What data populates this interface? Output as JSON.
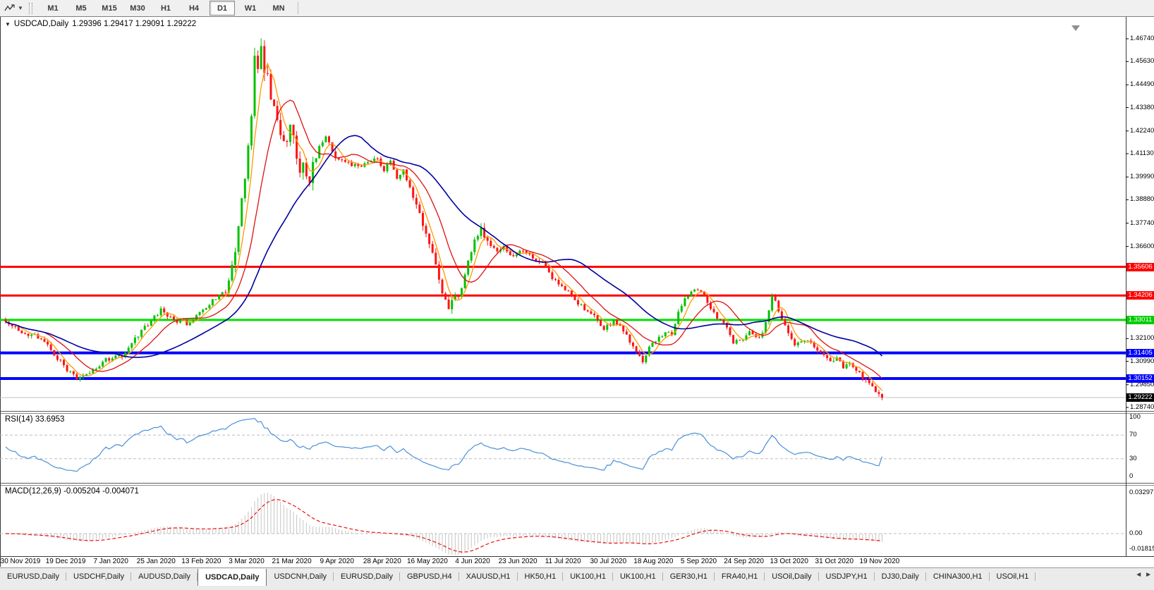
{
  "toolbar": {
    "timeframes": [
      "M1",
      "M5",
      "M15",
      "M30",
      "H1",
      "H4",
      "D1",
      "W1",
      "MN"
    ],
    "active_timeframe": "D1",
    "dropdown_glyph": "▼"
  },
  "chart": {
    "collapse_arrow": "▼",
    "symbol_label": "USDCAD,Daily",
    "ohlc_line": "1.29396 1.29417 1.29091 1.29222"
  },
  "price_axis": {
    "ticks": [
      "1.46740",
      "1.45630",
      "1.44490",
      "1.43380",
      "1.42240",
      "1.41130",
      "1.39990",
      "1.38880",
      "1.37740",
      "1.36600",
      "1.32100",
      "1.30990",
      "1.29850",
      "1.28740"
    ],
    "badges": [
      {
        "value": "1.35606",
        "price": 1.35606,
        "color": "#ff0000"
      },
      {
        "value": "1.34206",
        "price": 1.34206,
        "color": "#ff0000"
      },
      {
        "value": "1.33011",
        "price": 1.33011,
        "color": "#00cc00"
      },
      {
        "value": "1.31405",
        "price": 1.31405,
        "color": "#0000ff"
      },
      {
        "value": "1.30152",
        "price": 1.30152,
        "color": "#0000ff"
      },
      {
        "value": "1.29222",
        "price": 1.29222,
        "color": "#000000",
        "role": "current-price"
      }
    ]
  },
  "rsi": {
    "label": "RSI(14) 33.6953",
    "value": 33.6953,
    "period": 14,
    "scale_labels": [
      {
        "text": "100",
        "value": 100
      },
      {
        "text": "70",
        "value": 70
      },
      {
        "text": "30",
        "value": 30
      },
      {
        "text": "0",
        "value": 0
      }
    ],
    "dashed_levels": [
      70,
      30
    ],
    "line_color": "#4a90d9"
  },
  "macd": {
    "label": "MACD(12,26,9) -0.005204 -0.004071",
    "macd_value": -0.005204,
    "signal_value": -0.004071,
    "params": [
      12,
      26,
      9
    ],
    "scale_labels": [
      {
        "text": "0.032972",
        "pos": "top"
      },
      {
        "text": "0.00",
        "pos": "zero"
      },
      {
        "text": "-0.01815",
        "pos": "bottom"
      }
    ],
    "histogram_color": "#c4c4c4",
    "signal_color": "#ee1111"
  },
  "date_axis": {
    "labels": [
      "30 Nov 2019",
      "19 Dec 2019",
      "7 Jan 2020",
      "25 Jan 2020",
      "13 Feb 2020",
      "3 Mar 2020",
      "21 Mar 2020",
      "9 Apr 2020",
      "28 Apr 2020",
      "16 May 2020",
      "4 Jun 2020",
      "23 Jun 2020",
      "11 Jul 2020",
      "30 Jul 2020",
      "18 Aug 2020",
      "5 Sep 2020",
      "24 Sep 2020",
      "13 Oct 2020",
      "31 Oct 2020",
      "19 Nov 2020"
    ]
  },
  "tabs": {
    "items": [
      {
        "label": "EURUSD,Daily",
        "active": false
      },
      {
        "label": "USDCHF,Daily",
        "active": false
      },
      {
        "label": "AUDUSD,Daily",
        "active": false
      },
      {
        "label": "USDCAD,Daily",
        "active": true
      },
      {
        "label": "USDCNH,Daily",
        "active": false
      },
      {
        "label": "EURUSD,Daily",
        "active": false
      },
      {
        "label": "GBPUSD,H4",
        "active": false
      },
      {
        "label": "XAUUSD,H1",
        "active": false
      },
      {
        "label": "HK50,H1",
        "active": false
      },
      {
        "label": "UK100,H1",
        "active": false
      },
      {
        "label": "UK100,H1",
        "active": false
      },
      {
        "label": "GER30,H1",
        "active": false
      },
      {
        "label": "FRA40,H1",
        "active": false
      },
      {
        "label": "USOil,Daily",
        "active": false
      },
      {
        "label": "USDJPY,H1",
        "active": false
      },
      {
        "label": "DJ30,Daily",
        "active": false
      },
      {
        "label": "CHINA300,H1",
        "active": false
      },
      {
        "label": "USOil,H1",
        "active": false
      }
    ],
    "scroll_left": "◄",
    "scroll_right": "►"
  },
  "chart_data": {
    "type": "candlestick",
    "symbol": "USDCAD",
    "timeframe": "Daily",
    "current_ohlc": {
      "open": 1.29396,
      "high": 1.29417,
      "low": 1.29091,
      "close": 1.29222
    },
    "ylim": [
      1.2874,
      1.4674
    ],
    "x_range": [
      "30 Nov 2019",
      "19 Nov 2020"
    ],
    "bars": 272,
    "candle_colors": {
      "bull": "#00c200",
      "bear": "#ff1414"
    },
    "horizontal_lines": [
      {
        "price": 1.35606,
        "color": "#ff0000",
        "width": 3
      },
      {
        "price": 1.34206,
        "color": "#ff0000",
        "width": 3
      },
      {
        "price": 1.33011,
        "color": "#00e000",
        "width": 3
      },
      {
        "price": 1.31405,
        "color": "#0000ff",
        "width": 4
      },
      {
        "price": 1.30152,
        "color": "#0000ff",
        "width": 4
      },
      {
        "price": 1.29222,
        "color": "#c0c0c0",
        "width": 1,
        "role": "current-price"
      }
    ],
    "moving_averages": [
      {
        "period": 5,
        "color": "#ff9900"
      },
      {
        "period": 13,
        "color": "#dd1111"
      },
      {
        "period": 34,
        "color": "#0000a0"
      }
    ],
    "price_path": [
      [
        0,
        1.3297
      ],
      [
        5,
        1.3245
      ],
      [
        11,
        1.3211
      ],
      [
        19,
        1.3056
      ],
      [
        22,
        1.3022
      ],
      [
        27,
        1.3056
      ],
      [
        31,
        1.3108
      ],
      [
        36,
        1.3125
      ],
      [
        42,
        1.3245
      ],
      [
        48,
        1.3349
      ],
      [
        53,
        1.3297
      ],
      [
        57,
        1.328
      ],
      [
        61,
        1.335
      ],
      [
        64,
        1.34
      ],
      [
        68,
        1.3435
      ],
      [
        70,
        1.356
      ],
      [
        72,
        1.375
      ],
      [
        74,
        1.398
      ],
      [
        76,
        1.432
      ],
      [
        77,
        1.46
      ],
      [
        78,
        1.45
      ],
      [
        79,
        1.462
      ],
      [
        80,
        1.4536
      ],
      [
        82,
        1.44
      ],
      [
        84,
        1.425
      ],
      [
        86,
        1.4175
      ],
      [
        88,
        1.4226
      ],
      [
        91,
        1.4054
      ],
      [
        94,
        1.4003
      ],
      [
        97,
        1.414
      ],
      [
        99,
        1.4192
      ],
      [
        102,
        1.4089
      ],
      [
        105,
        1.4071
      ],
      [
        109,
        1.4054
      ],
      [
        115,
        1.4089
      ],
      [
        117,
        1.4037
      ],
      [
        119,
        1.4071
      ],
      [
        121,
        1.3985
      ],
      [
        123,
        1.4037
      ],
      [
        127,
        1.3865
      ],
      [
        130,
        1.3728
      ],
      [
        132,
        1.3624
      ],
      [
        134,
        1.3487
      ],
      [
        137,
        1.3366
      ],
      [
        140,
        1.3418
      ],
      [
        142,
        1.3521
      ],
      [
        144,
        1.3642
      ],
      [
        147,
        1.3745
      ],
      [
        149,
        1.3693
      ],
      [
        152,
        1.3642
      ],
      [
        154,
        1.3659
      ],
      [
        156,
        1.3607
      ],
      [
        159,
        1.3642
      ],
      [
        162,
        1.3624
      ],
      [
        166,
        1.3573
      ],
      [
        169,
        1.3504
      ],
      [
        172,
        1.3469
      ],
      [
        175,
        1.3418
      ],
      [
        179,
        1.3349
      ],
      [
        182,
        1.3314
      ],
      [
        185,
        1.3263
      ],
      [
        188,
        1.3297
      ],
      [
        192,
        1.3228
      ],
      [
        195,
        1.3142
      ],
      [
        197,
        1.309
      ],
      [
        199,
        1.3176
      ],
      [
        202,
        1.3211
      ],
      [
        204,
        1.3245
      ],
      [
        206,
        1.3228
      ],
      [
        208,
        1.3349
      ],
      [
        210,
        1.34
      ],
      [
        212,
        1.3435
      ],
      [
        215,
        1.3445
      ],
      [
        217,
        1.3383
      ],
      [
        219,
        1.3331
      ],
      [
        221,
        1.3297
      ],
      [
        223,
        1.3263
      ],
      [
        225,
        1.3194
      ],
      [
        228,
        1.3211
      ],
      [
        230,
        1.3245
      ],
      [
        232,
        1.3211
      ],
      [
        234,
        1.3228
      ],
      [
        236,
        1.3349
      ],
      [
        237,
        1.342
      ],
      [
        240,
        1.3314
      ],
      [
        242,
        1.3228
      ],
      [
        244,
        1.3176
      ],
      [
        246,
        1.3194
      ],
      [
        248,
        1.3211
      ],
      [
        250,
        1.3176
      ],
      [
        253,
        1.3125
      ],
      [
        255,
        1.309
      ],
      [
        257,
        1.3108
      ],
      [
        259,
        1.3073
      ],
      [
        261,
        1.309
      ],
      [
        264,
        1.3039
      ],
      [
        266,
        1.3004
      ],
      [
        268,
        1.2969
      ],
      [
        270,
        1.294
      ],
      [
        271,
        1.29222
      ]
    ]
  }
}
